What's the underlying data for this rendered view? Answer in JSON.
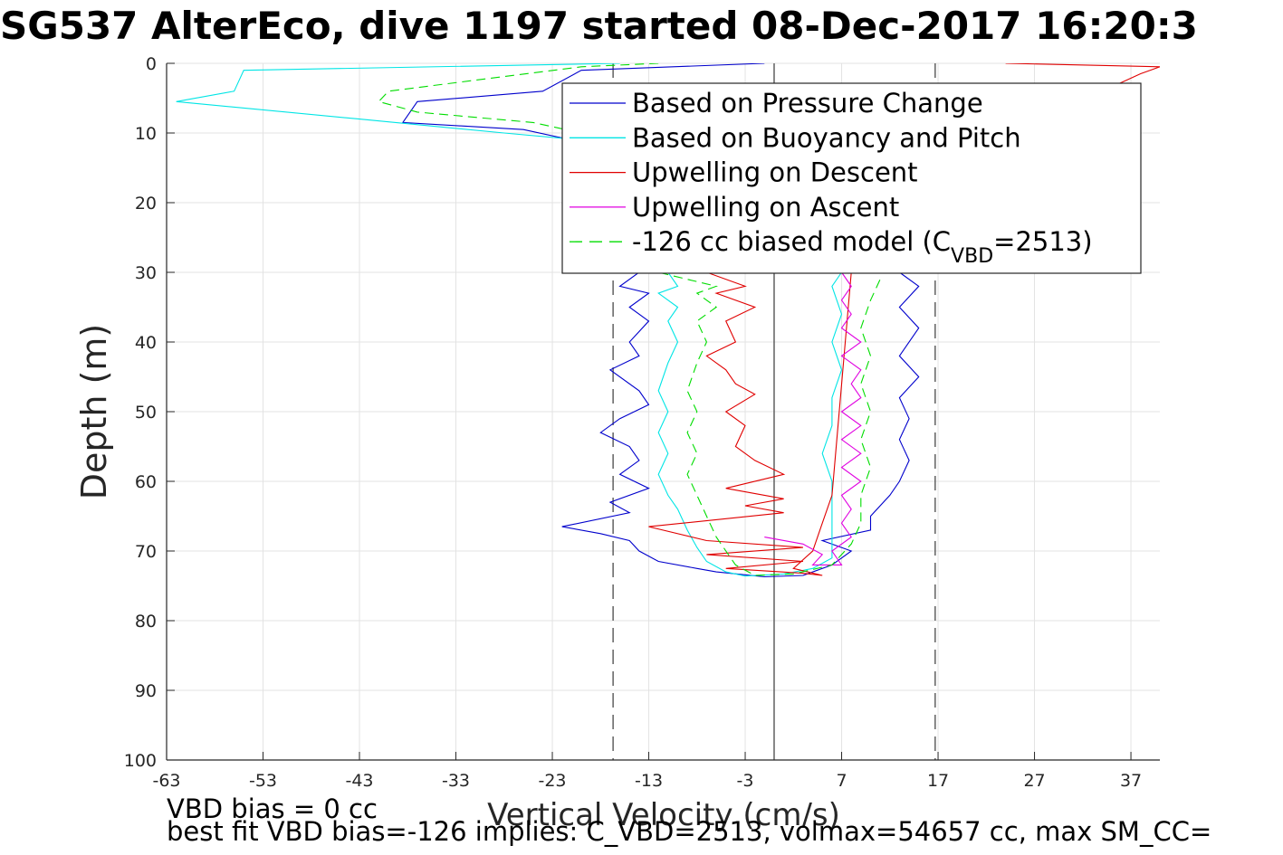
{
  "chart_data": {
    "type": "line",
    "title": "SG537 AlterEco, dive 1197 started 08-Dec-2017 16:20:3",
    "xlabel": "Vertical Velocity (cm/s)",
    "ylabel": "Depth (m)",
    "xlim": [
      -63,
      40
    ],
    "ylim": [
      0,
      100
    ],
    "y_reversed": true,
    "grid": true,
    "x_ticks": [
      "-63",
      "-53",
      "-43",
      "-33",
      "-23",
      "-13",
      "-3",
      "7",
      "17",
      "27",
      "37"
    ],
    "y_ticks": [
      "0",
      "10",
      "20",
      "30",
      "40",
      "50",
      "60",
      "70",
      "80",
      "90",
      "100"
    ],
    "reference_lines": [
      {
        "x": 0,
        "style": "solid",
        "color": "#555555"
      },
      {
        "x": -16.7,
        "style": "dashed",
        "color": "#555555"
      },
      {
        "x": 16.7,
        "style": "dashed",
        "color": "#555555"
      }
    ],
    "legend": {
      "position": "top-right",
      "entries": [
        {
          "label": "Based on Pressure Change",
          "color": "#0000cc",
          "style": "solid"
        },
        {
          "label": "Based on Buoyancy and Pitch",
          "color": "#00e5e5",
          "style": "solid"
        },
        {
          "label": "Upwelling on Descent",
          "color": "#e00000",
          "style": "solid"
        },
        {
          "label": "Upwelling on Ascent",
          "color": "#e000e0",
          "style": "solid"
        },
        {
          "label": "-126 cc biased model (C",
          "sub": "VBD",
          "suffix": "=2513)",
          "color": "#00dd00",
          "style": "dashed"
        }
      ]
    },
    "series": [
      {
        "name": "Based on Pressure Change",
        "color": "#0000cc",
        "dash": false,
        "points": [
          [
            -1,
            0
          ],
          [
            -20,
            1
          ],
          [
            -24,
            4
          ],
          [
            -37,
            5.5
          ],
          [
            -38.5,
            8.5
          ],
          [
            -26,
            9.5
          ],
          [
            -21,
            11
          ],
          [
            -14,
            30
          ],
          [
            -16,
            32
          ],
          [
            -13,
            33
          ],
          [
            -15,
            35
          ],
          [
            -13,
            37
          ],
          [
            -15,
            40
          ],
          [
            -14,
            42
          ],
          [
            -17,
            44
          ],
          [
            -14,
            47
          ],
          [
            -13,
            49
          ],
          [
            -16,
            51
          ],
          [
            -18,
            53
          ],
          [
            -15,
            55
          ],
          [
            -14,
            57
          ],
          [
            -16,
            59
          ],
          [
            -13,
            61
          ],
          [
            -17,
            63
          ],
          [
            -15,
            64.5
          ],
          [
            -22,
            66.5
          ],
          [
            -18,
            67.5
          ],
          [
            -15,
            68.5
          ],
          [
            -14,
            70
          ],
          [
            -12,
            71.5
          ],
          [
            -8,
            72.5
          ],
          [
            -6,
            73
          ],
          [
            -1,
            73.7
          ],
          [
            3,
            73.5
          ],
          [
            6,
            72
          ],
          [
            8,
            70
          ],
          [
            5,
            68.5
          ],
          [
            10,
            67
          ],
          [
            10,
            65
          ],
          [
            12,
            62
          ],
          [
            13,
            60
          ],
          [
            14,
            57
          ],
          [
            13,
            54
          ],
          [
            14,
            51
          ],
          [
            13,
            48
          ],
          [
            15,
            45
          ],
          [
            13,
            42
          ],
          [
            15,
            38
          ],
          [
            13,
            35
          ],
          [
            15,
            32
          ],
          [
            13,
            30
          ]
        ]
      },
      {
        "name": "Based on Buoyancy and Pitch",
        "color": "#00e5e5",
        "dash": false,
        "points": [
          [
            -16,
            0
          ],
          [
            -55,
            1
          ],
          [
            -56,
            4
          ],
          [
            -62,
            5.5
          ],
          [
            -43,
            8
          ],
          [
            -28,
            10
          ],
          [
            -20,
            11
          ],
          [
            -11,
            30
          ],
          [
            -10,
            32
          ],
          [
            -12,
            33
          ],
          [
            -10,
            35
          ],
          [
            -11,
            37
          ],
          [
            -10,
            40
          ],
          [
            -11,
            43
          ],
          [
            -12,
            47
          ],
          [
            -11,
            50
          ],
          [
            -12,
            53
          ],
          [
            -11,
            56
          ],
          [
            -12,
            59
          ],
          [
            -11,
            62
          ],
          [
            -10,
            64
          ],
          [
            -9,
            67
          ],
          [
            -8,
            69.5
          ],
          [
            -7,
            71.5
          ],
          [
            -5,
            73
          ],
          [
            -3,
            73.6
          ],
          [
            1,
            73.3
          ],
          [
            4,
            72.5
          ],
          [
            6,
            71
          ],
          [
            6,
            68
          ],
          [
            6,
            64
          ],
          [
            6,
            60
          ],
          [
            5,
            56
          ],
          [
            6,
            52
          ],
          [
            6,
            48
          ],
          [
            7,
            44
          ],
          [
            6,
            40
          ],
          [
            7,
            36
          ],
          [
            6,
            32
          ],
          [
            7,
            30
          ]
        ]
      },
      {
        "name": "Upwelling on Descent",
        "color": "#e00000",
        "dash": false,
        "points": [
          [
            24,
            0
          ],
          [
            40,
            0.5
          ],
          [
            38,
            1.5
          ],
          [
            -7,
            30
          ],
          [
            -3,
            32
          ],
          [
            -6,
            33
          ],
          [
            -2,
            35
          ],
          [
            -5,
            37
          ],
          [
            -4,
            40
          ],
          [
            -7,
            42
          ],
          [
            -5,
            44
          ],
          [
            -4,
            46
          ],
          [
            -2,
            47.5
          ],
          [
            -5,
            50
          ],
          [
            -3,
            52
          ],
          [
            -4,
            55
          ],
          [
            -2,
            57
          ],
          [
            1,
            59
          ],
          [
            -5,
            61
          ],
          [
            1,
            62.5
          ],
          [
            -3,
            63.5
          ],
          [
            1,
            64.5
          ],
          [
            -13,
            66.5
          ],
          [
            -7,
            68.5
          ],
          [
            3,
            69.5
          ],
          [
            -7,
            70.5
          ],
          [
            3,
            71.5
          ],
          [
            -5,
            72.5
          ],
          [
            3,
            73.2
          ],
          [
            5,
            73.5
          ],
          [
            2,
            72.5
          ],
          [
            4,
            70
          ],
          [
            5,
            66
          ],
          [
            6,
            62
          ],
          [
            8,
            30
          ]
        ]
      },
      {
        "name": "Upwelling on Ascent",
        "color": "#e000e0",
        "dash": false,
        "points": [
          [
            -1,
            68
          ],
          [
            3,
            69
          ],
          [
            5,
            70.5
          ],
          [
            4,
            72
          ],
          [
            7,
            72
          ],
          [
            6,
            70
          ],
          [
            8,
            68
          ],
          [
            7,
            66
          ],
          [
            8,
            64
          ],
          [
            7,
            62
          ],
          [
            9,
            60
          ],
          [
            7,
            58
          ],
          [
            9,
            56
          ],
          [
            7,
            54
          ],
          [
            9,
            52
          ],
          [
            7,
            50
          ],
          [
            9,
            48
          ],
          [
            8,
            46
          ],
          [
            9,
            44
          ],
          [
            7,
            42
          ],
          [
            9,
            40
          ],
          [
            7,
            38
          ],
          [
            8,
            36
          ],
          [
            7,
            34
          ],
          [
            8,
            32
          ],
          [
            7,
            30
          ]
        ]
      },
      {
        "name": "-126 cc biased model (C_VBD=2513)",
        "color": "#00dd00",
        "dash": true,
        "points": [
          [
            -12,
            0
          ],
          [
            -20,
            0.5
          ],
          [
            -40,
            4
          ],
          [
            -41,
            5.5
          ],
          [
            -37,
            7
          ],
          [
            -25,
            8.5
          ],
          [
            -20,
            10
          ],
          [
            -12,
            30
          ],
          [
            -6,
            32
          ],
          [
            -8,
            33
          ],
          [
            -6,
            35
          ],
          [
            -8,
            37
          ],
          [
            -7,
            40
          ],
          [
            -8,
            43
          ],
          [
            -9,
            47
          ],
          [
            -8,
            50
          ],
          [
            -9,
            53
          ],
          [
            -8,
            56
          ],
          [
            -9,
            59
          ],
          [
            -8,
            62
          ],
          [
            -7,
            65
          ],
          [
            -6,
            68
          ],
          [
            -5,
            70
          ],
          [
            -4,
            72
          ],
          [
            -2,
            73.5
          ],
          [
            2,
            73.3
          ],
          [
            6,
            72
          ],
          [
            8,
            69
          ],
          [
            9,
            66
          ],
          [
            9,
            62
          ],
          [
            10,
            58
          ],
          [
            9,
            54
          ],
          [
            10,
            50
          ],
          [
            9,
            46
          ],
          [
            10,
            42
          ],
          [
            9,
            38
          ],
          [
            10,
            34
          ],
          [
            11,
            31
          ]
        ]
      }
    ]
  },
  "notes": {
    "line1": "VBD bias = 0 cc",
    "line2": "best fit VBD bias=-126 implies: C_VBD=2513, volmax=54657 cc, max SM_CC="
  }
}
